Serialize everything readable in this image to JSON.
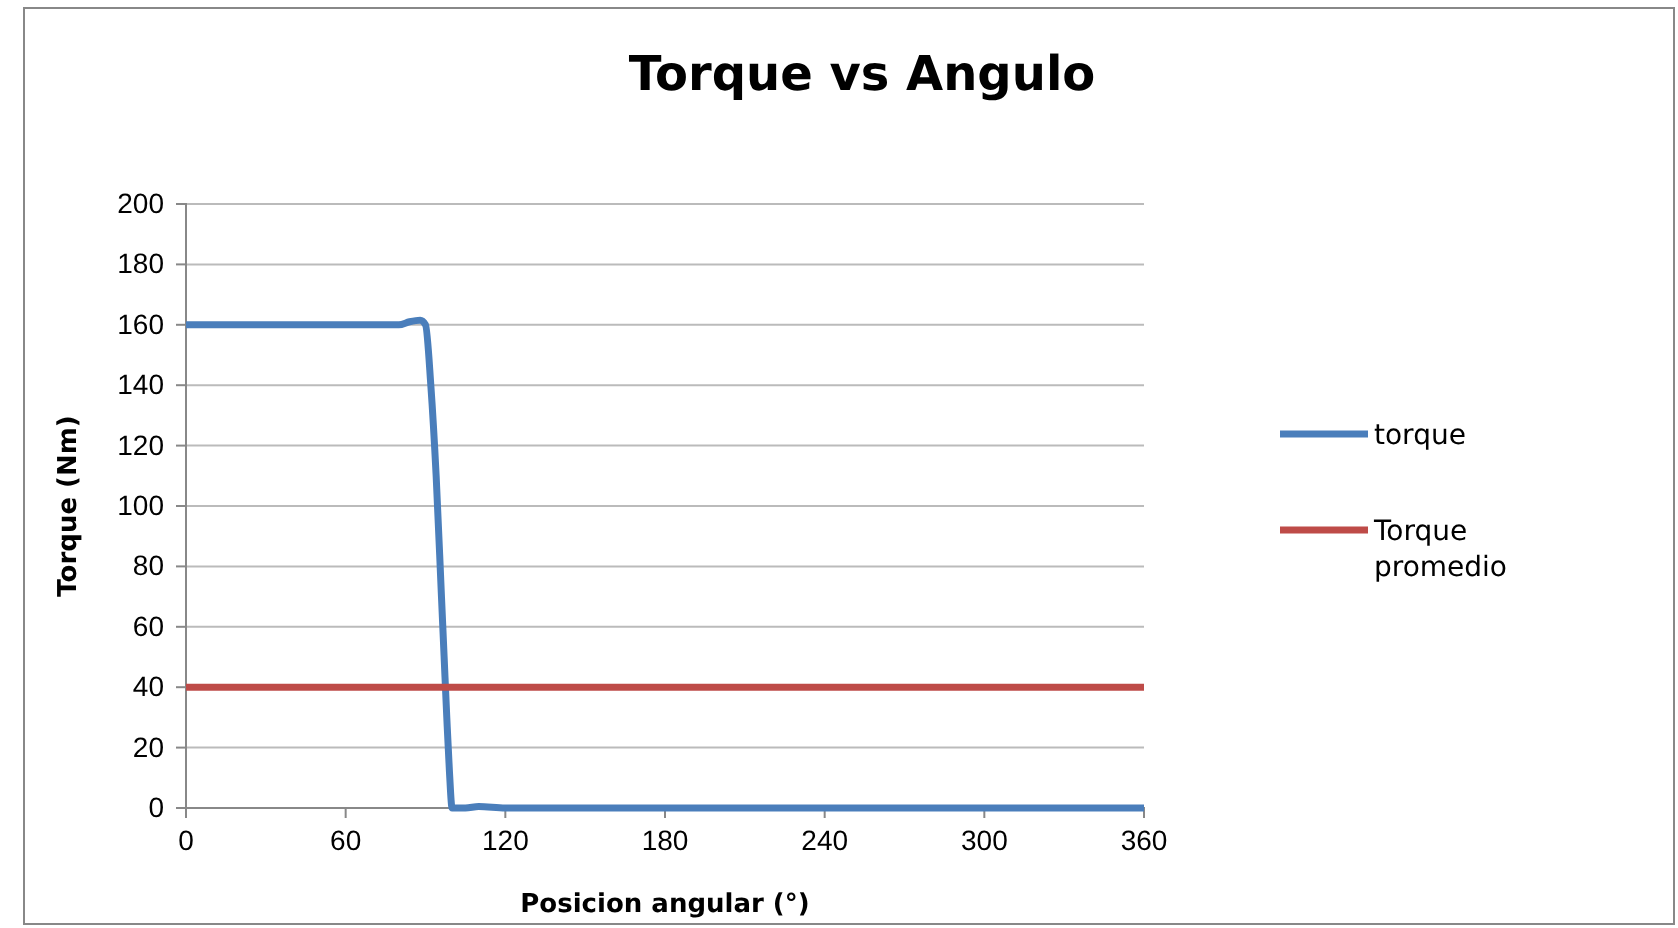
{
  "chart_data": {
    "type": "line",
    "title": "Torque vs Angulo",
    "xlabel": "Posicion angular (°)",
    "ylabel": "Torque (Nm)",
    "xlim": [
      0,
      360
    ],
    "xticks": [
      0,
      60,
      120,
      180,
      240,
      300,
      360
    ],
    "ylim": [
      0,
      200
    ],
    "yticks": [
      0,
      20,
      40,
      60,
      80,
      100,
      120,
      140,
      160,
      180,
      200
    ],
    "grid": "y",
    "legend": "right",
    "marker": "none",
    "line_style": "solid",
    "series": [
      {
        "name": "torque",
        "color": "#4a7ebb",
        "x": [
          0,
          30,
          60,
          80,
          84,
          88,
          90,
          92,
          94,
          96,
          97,
          98,
          99,
          100,
          105,
          110,
          120,
          180,
          240,
          300,
          360
        ],
        "values": [
          160,
          160,
          160,
          160,
          161,
          161.5,
          160,
          140,
          110,
          70,
          50,
          30,
          12,
          0,
          0,
          0.5,
          0,
          0,
          0,
          0,
          0
        ]
      },
      {
        "name": "Torque promedio",
        "color": "#be4b48",
        "x": [
          0,
          360
        ],
        "values": [
          40,
          40
        ]
      }
    ]
  }
}
